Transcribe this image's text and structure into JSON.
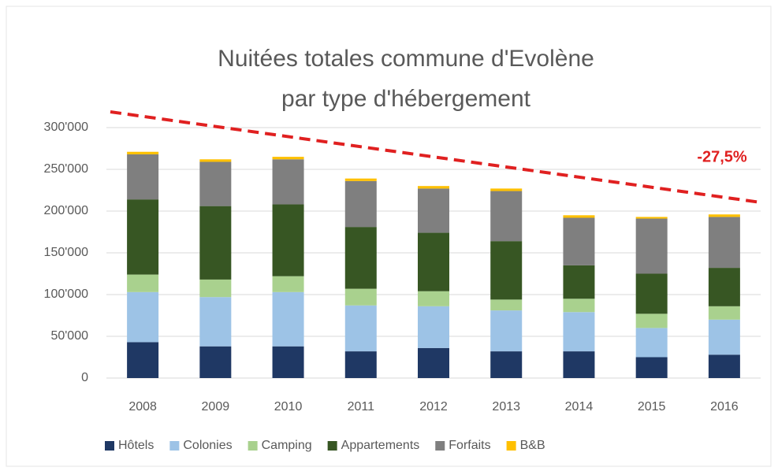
{
  "chart_data": {
    "type": "stacked_bar",
    "title": [
      "Nuitées totales commune d'Evolène",
      "par type d'hébergement"
    ],
    "annotation": "-27,5%",
    "categories": [
      "2008",
      "2009",
      "2010",
      "2011",
      "2012",
      "2013",
      "2014",
      "2015",
      "2016"
    ],
    "series": [
      {
        "name": "Hôtels",
        "color": "#1f3864",
        "values": [
          43000,
          38000,
          38000,
          32000,
          36000,
          32000,
          32000,
          25000,
          28000
        ]
      },
      {
        "name": "Colonies",
        "color": "#9dc3e6",
        "values": [
          60000,
          59000,
          65000,
          55000,
          50000,
          49000,
          47000,
          35000,
          42000
        ]
      },
      {
        "name": "Camping",
        "color": "#a9d18e",
        "values": [
          21000,
          21000,
          19000,
          20000,
          18000,
          13000,
          16000,
          17000,
          16000
        ]
      },
      {
        "name": "Appartements",
        "color": "#375623",
        "values": [
          90000,
          88000,
          86000,
          74000,
          70000,
          70000,
          40000,
          48000,
          46000
        ]
      },
      {
        "name": "Forfaits",
        "color": "#7f7f7f",
        "values": [
          54000,
          53000,
          54000,
          55000,
          53000,
          60000,
          57000,
          66000,
          61000
        ]
      },
      {
        "name": "B&B",
        "color": "#ffc000",
        "values": [
          3000,
          3000,
          3000,
          3000,
          3000,
          3000,
          3000,
          2000,
          3000
        ]
      }
    ],
    "ylim": [
      0,
      300000
    ],
    "yticks": [
      0,
      {
        "value": 50000,
        "label": "50'000"
      },
      {
        "value": 100000,
        "label": "100'000"
      },
      {
        "value": 150000,
        "label": "150'000"
      },
      {
        "value": 200000,
        "label": "200'000"
      },
      {
        "value": 250000,
        "label": "250'000"
      },
      {
        "value": 300000,
        "label": "300'000"
      }
    ],
    "grid": true,
    "legend": "bottom"
  }
}
